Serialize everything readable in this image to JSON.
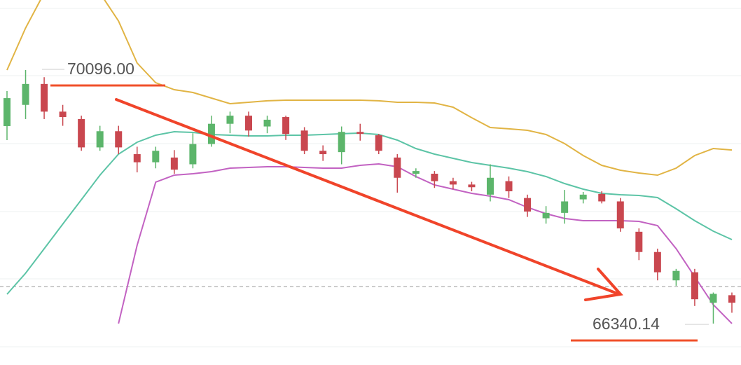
{
  "chart_data": {
    "type": "candlestick",
    "high_label": "70096.00",
    "low_label": "66340.14",
    "ylim": [
      65726,
      71134
    ],
    "up_color": "#5cb56b",
    "down_color": "#c9474f",
    "candles": {
      "open": [
        69266,
        69580,
        69890,
        69480,
        69370,
        68950,
        69190,
        68850,
        68730,
        68800,
        68700,
        69000,
        69300,
        69420,
        69260,
        69400,
        69200,
        68900,
        68880,
        69180,
        69130,
        68800,
        68560,
        68560,
        68450,
        68400,
        68250,
        68450,
        68200,
        67900,
        67980,
        68180,
        68260,
        68150,
        67700,
        67400,
        66980,
        67100,
        66650,
        66760
      ],
      "high": [
        69785,
        70096,
        69990,
        69580,
        69420,
        69270,
        69270,
        68960,
        68960,
        68910,
        69160,
        69420,
        69480,
        69480,
        69420,
        69420,
        69250,
        68980,
        69260,
        69300,
        69150,
        68850,
        68640,
        68600,
        68500,
        68440,
        68700,
        68520,
        68250,
        68080,
        68320,
        68290,
        68300,
        68200,
        67750,
        67450,
        67150,
        67150,
        66800,
        66800
      ],
      "low": [
        69058,
        69370,
        69370,
        69270,
        68900,
        68900,
        68850,
        68580,
        68640,
        68560,
        68640,
        68960,
        69160,
        69110,
        69160,
        69060,
        68850,
        68750,
        68700,
        69050,
        68850,
        68280,
        68500,
        68350,
        68330,
        68300,
        68150,
        68200,
        67920,
        67820,
        67820,
        68120,
        68120,
        67700,
        67280,
        66980,
        66900,
        66600,
        66340,
        66500
      ],
      "close": [
        69680,
        69890,
        69480,
        69400,
        68950,
        69190,
        68950,
        68730,
        68900,
        68620,
        69000,
        69300,
        69420,
        69200,
        69360,
        69150,
        68900,
        68850,
        69180,
        69150,
        68900,
        68500,
        68600,
        68450,
        68400,
        68360,
        68500,
        68300,
        68000,
        67980,
        68150,
        68250,
        68150,
        67750,
        67400,
        67100,
        67120,
        66700,
        66780,
        66650
      ]
    },
    "upper_band": {
      "color": "#e1b444",
      "values": [
        70096,
        70719,
        71238,
        71446,
        71446,
        71238,
        70823,
        70200,
        69909,
        69805,
        69764,
        69681,
        69598,
        69619,
        69640,
        69650,
        69650,
        69650,
        69650,
        69650,
        69640,
        69619,
        69619,
        69608,
        69546,
        69390,
        69245,
        69225,
        69203,
        69141,
        69006,
        68830,
        68684,
        68612,
        68570,
        68539,
        68643,
        68830,
        68933,
        68912
      ]
    },
    "middle_band": {
      "color": "#5cc4a6",
      "values": [
        66774,
        67086,
        67449,
        67813,
        68176,
        68539,
        68850,
        69027,
        69131,
        69183,
        69172,
        69141,
        69131,
        69120,
        69120,
        69131,
        69131,
        69141,
        69152,
        69162,
        69141,
        69058,
        68933,
        68850,
        68788,
        68726,
        68684,
        68643,
        68591,
        68518,
        68414,
        68331,
        68269,
        68248,
        68238,
        68207,
        68041,
        67864,
        67709,
        67584
      ]
    },
    "lower_band": {
      "color": "#c262c2",
      "values": [
        null,
        null,
        null,
        null,
        null,
        null,
        66340,
        67501,
        68435,
        68539,
        68560,
        68591,
        68643,
        68653,
        68664,
        68664,
        68653,
        68643,
        68643,
        68684,
        68705,
        68664,
        68518,
        68394,
        68331,
        68269,
        68228,
        68176,
        68061,
        67968,
        67896,
        67864,
        67864,
        67864,
        67854,
        67792,
        67449,
        67034,
        66619,
        66340
      ]
    }
  }
}
